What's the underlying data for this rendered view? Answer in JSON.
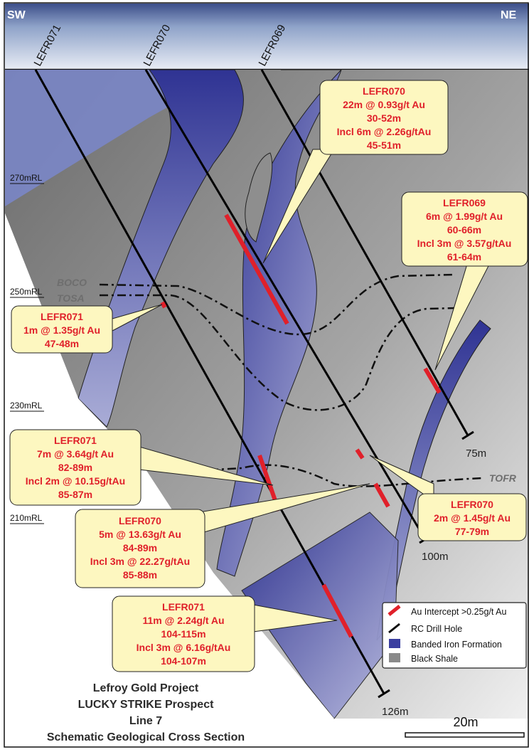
{
  "compass": {
    "left": "SW",
    "right": "NE"
  },
  "holes": [
    "LEFR071",
    "LEFR070",
    "LEFR069"
  ],
  "rl_levels": [
    "270mRL",
    "250mRL",
    "230mRL",
    "210mRL"
  ],
  "units": [
    "BOCO",
    "TOSA",
    "TOFR"
  ],
  "depths": [
    "75m",
    "100m",
    "126m"
  ],
  "callouts": [
    {
      "lines": [
        "LEFR070",
        "22m @ 0.93g/t Au",
        "30-52m",
        "Incl 6m @ 2.26g/tAu",
        "45-51m"
      ]
    },
    {
      "lines": [
        "LEFR069",
        "6m @ 1.99g/t Au",
        "60-66m",
        "Incl 3m @ 3.57g/tAu",
        "61-64m"
      ]
    },
    {
      "lines": [
        "LEFR071",
        "1m @ 1.35g/t Au",
        "47-48m"
      ]
    },
    {
      "lines": [
        "LEFR071",
        "7m @ 3.64g/t Au",
        "82-89m",
        "Incl 2m @ 10.15g/tAu",
        "85-87m"
      ]
    },
    {
      "lines": [
        "LEFR070",
        "2m @ 1.45g/t Au",
        "77-79m"
      ]
    },
    {
      "lines": [
        "LEFR070",
        "5m @ 13.63g/t Au",
        "84-89m",
        "Incl 3m @ 22.27g/tAu",
        "85-88m"
      ]
    },
    {
      "lines": [
        "LEFR071",
        "11m @ 2.24g/t Au",
        "104-115m",
        "Incl 3m @ 6.16g/tAu",
        "104-107m"
      ]
    }
  ],
  "legend": [
    {
      "label": "Au Intercept >0.25g/t Au",
      "icon": "red-intercept-icon",
      "color": "#e0202a"
    },
    {
      "label": "RC Drill Hole",
      "icon": "drill-hole-icon",
      "color": "#111111"
    },
    {
      "label": "Banded Iron Formation",
      "icon": "bif-swatch-icon",
      "color": "#3a3ea0"
    },
    {
      "label": "Black Shale",
      "icon": "shale-swatch-icon",
      "color": "#8a8a8a"
    }
  ],
  "title_lines": [
    "Lefroy Gold Project",
    "LUCKY STRIKE Prospect",
    "Line 7",
    "Schematic Geological Cross Section"
  ],
  "scale_label": "20m",
  "colors": {
    "intercept": "#e0202a",
    "bif": "#3a3ea0",
    "shale": "#8c8c8c",
    "callout_fill": "#fdf7c0"
  }
}
